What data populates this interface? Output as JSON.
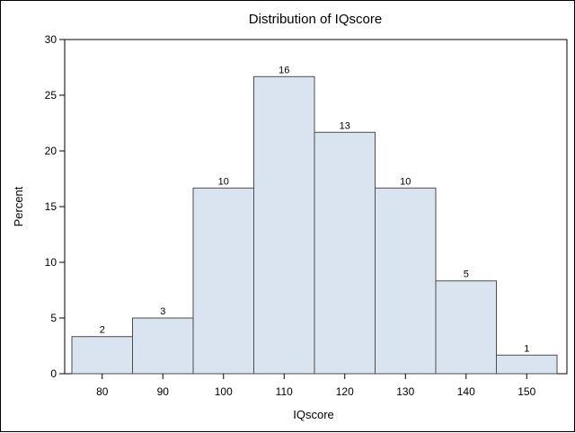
{
  "chart_data": {
    "type": "bar",
    "title": "Distribution of IQscore",
    "xlabel": "IQscore",
    "ylabel": "Percent",
    "categories": [
      "80",
      "90",
      "100",
      "110",
      "120",
      "130",
      "140",
      "150"
    ],
    "values": [
      3.33,
      5.0,
      16.67,
      26.67,
      21.67,
      16.67,
      8.33,
      1.67
    ],
    "data_labels": [
      "2",
      "3",
      "10",
      "16",
      "13",
      "10",
      "5",
      "1"
    ],
    "yticks": [
      "0",
      "5",
      "10",
      "15",
      "20",
      "25",
      "30"
    ],
    "ylim": [
      0,
      30
    ],
    "grid": false,
    "colors": {
      "bar_fill": "#dae3f0",
      "bar_stroke": "#4d4d4d",
      "axis": "#000000",
      "text": "#000000"
    }
  }
}
